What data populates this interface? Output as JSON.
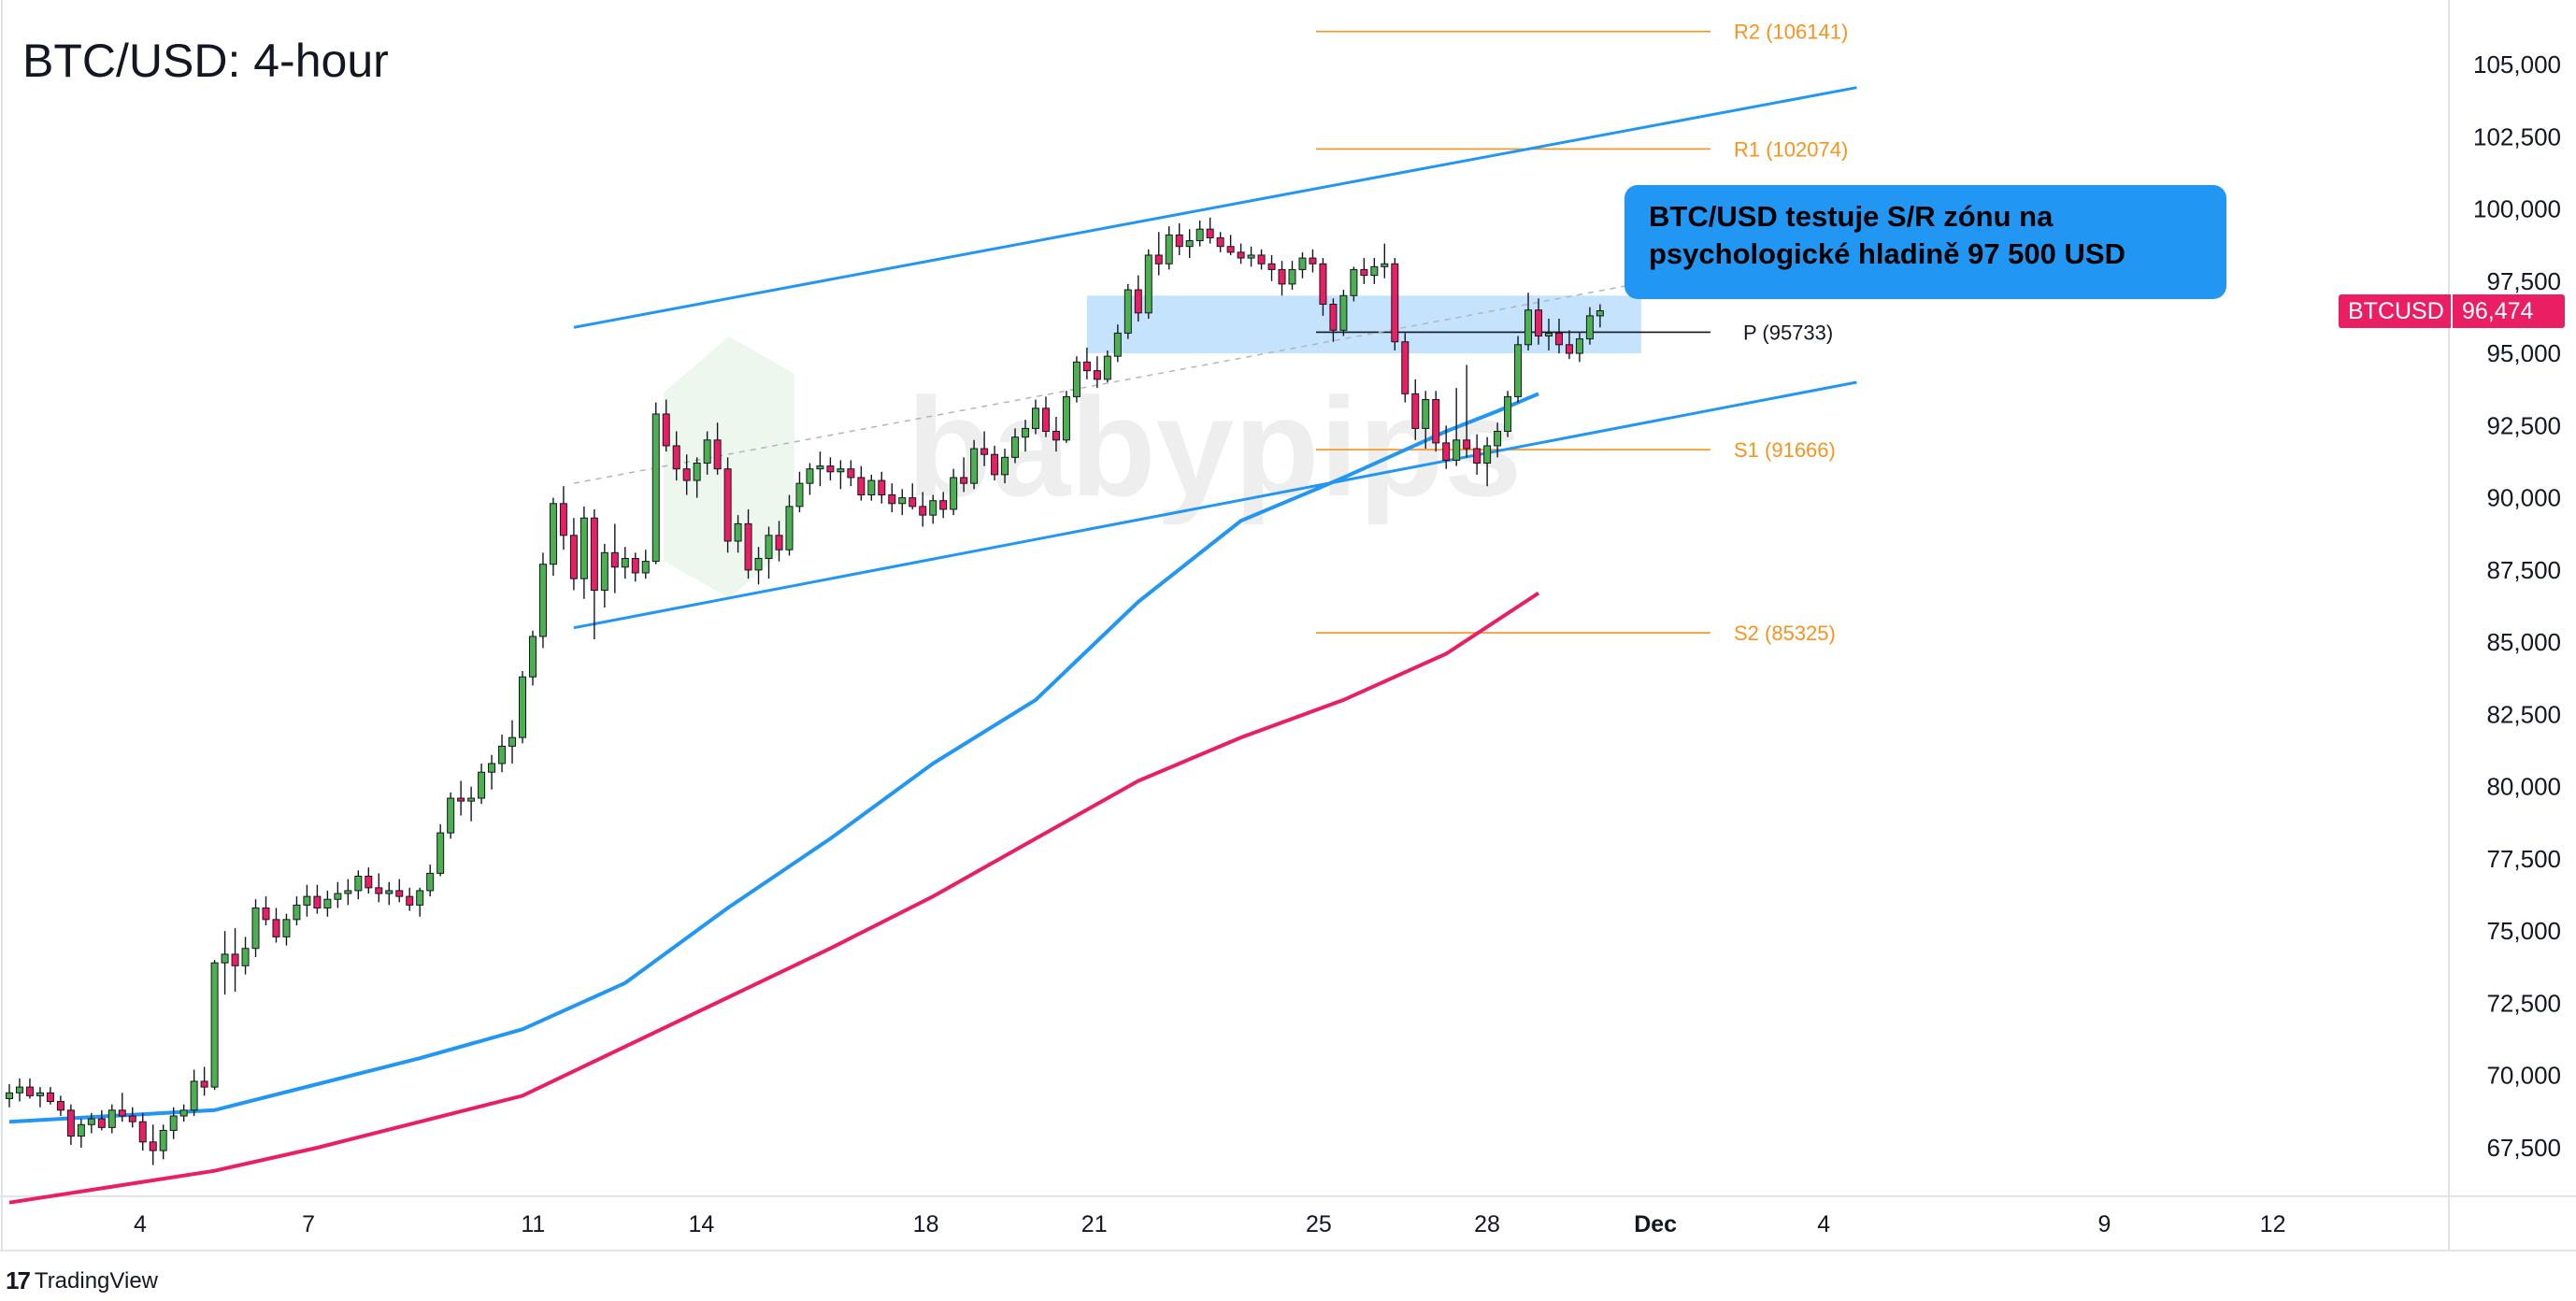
{
  "header": {
    "title": "BTC/USD: 4-hour"
  },
  "callout": {
    "text_line1": "BTC/USD testuje S/R zónu na",
    "text_line2": "psychologické hladině 97 500 USD"
  },
  "price_tag": {
    "symbol": "BTCUSD",
    "value": "96,474",
    "color": "#e91e63"
  },
  "footer": {
    "brand": "TradingView"
  },
  "watermark": {
    "text": "babypips"
  },
  "chart_data": {
    "type": "candlestick",
    "title": "BTC/USD: 4-hour",
    "ylim": [
      65500,
      106500
    ],
    "y_ticks": [
      67500,
      70000,
      72500,
      75000,
      77500,
      80000,
      82500,
      85000,
      87500,
      90000,
      92500,
      95000,
      97500,
      100000,
      102500,
      105000
    ],
    "y_tick_labels": [
      "67,500",
      "70,000",
      "72,500",
      "75,000",
      "77,500",
      "80,000",
      "82,500",
      "85,000",
      "87,500",
      "90,000",
      "92,500",
      "95,000",
      "97,500",
      "100,000",
      "102,500",
      "105,000"
    ],
    "x_ticks": [
      {
        "label": "4",
        "day": 4
      },
      {
        "label": "7",
        "day": 7
      },
      {
        "label": "11",
        "day": 11
      },
      {
        "label": "14",
        "day": 14
      },
      {
        "label": "18",
        "day": 18
      },
      {
        "label": "21",
        "day": 21
      },
      {
        "label": "25",
        "day": 25
      },
      {
        "label": "28",
        "day": 28
      },
      {
        "label": "Dec",
        "day": 31
      },
      {
        "label": "4",
        "day": 34
      },
      {
        "label": "9",
        "day": 39
      },
      {
        "label": "12",
        "day": 42
      }
    ],
    "x_range_days": [
      1.7,
      45.7
    ],
    "candles_ohlc": [
      [
        69200,
        69700,
        68900,
        69400
      ],
      [
        69400,
        69900,
        69100,
        69600
      ],
      [
        69600,
        69900,
        69200,
        69300
      ],
      [
        69300,
        69600,
        68900,
        69400
      ],
      [
        69400,
        69600,
        69000,
        69100
      ],
      [
        69100,
        69300,
        68600,
        68800
      ],
      [
        68800,
        69000,
        67600,
        67900
      ],
      [
        67900,
        68500,
        67500,
        68300
      ],
      [
        68300,
        68700,
        68000,
        68500
      ],
      [
        68500,
        68800,
        68100,
        68200
      ],
      [
        68200,
        69000,
        68000,
        68800
      ],
      [
        68800,
        69400,
        68400,
        68600
      ],
      [
        68600,
        68900,
        68200,
        68400
      ],
      [
        68400,
        68700,
        67400,
        67700
      ],
      [
        67700,
        68300,
        66900,
        67400
      ],
      [
        67400,
        68300,
        67100,
        68100
      ],
      [
        68100,
        68900,
        67800,
        68600
      ],
      [
        68600,
        69000,
        68400,
        68800
      ],
      [
        68800,
        70200,
        68600,
        69800
      ],
      [
        69800,
        70300,
        69300,
        69600
      ],
      [
        69600,
        74000,
        69500,
        73900
      ],
      [
        73900,
        75000,
        72800,
        74200
      ],
      [
        74200,
        75100,
        72900,
        73800
      ],
      [
        73800,
        74800,
        73500,
        74400
      ],
      [
        74400,
        76100,
        74100,
        75800
      ],
      [
        75800,
        76200,
        75200,
        75400
      ],
      [
        75400,
        75800,
        74600,
        74800
      ],
      [
        74800,
        75600,
        74500,
        75400
      ],
      [
        75400,
        76200,
        75200,
        75900
      ],
      [
        75900,
        76600,
        75500,
        76200
      ],
      [
        76200,
        76600,
        75600,
        75800
      ],
      [
        75800,
        76400,
        75500,
        76100
      ],
      [
        76100,
        76700,
        75800,
        76300
      ],
      [
        76300,
        76800,
        75900,
        76400
      ],
      [
        76400,
        77100,
        76100,
        76900
      ],
      [
        76900,
        77200,
        76300,
        76500
      ],
      [
        76500,
        77000,
        76000,
        76300
      ],
      [
        76300,
        76700,
        75900,
        76400
      ],
      [
        76400,
        76800,
        76000,
        76200
      ],
      [
        76200,
        76500,
        75700,
        75900
      ],
      [
        75900,
        76500,
        75500,
        76400
      ],
      [
        76400,
        77300,
        76200,
        77000
      ],
      [
        77000,
        78700,
        76900,
        78400
      ],
      [
        78400,
        79800,
        78200,
        79600
      ],
      [
        79600,
        80200,
        79000,
        79500
      ],
      [
        79500,
        80000,
        78800,
        79600
      ],
      [
        79600,
        80800,
        79400,
        80500
      ],
      [
        80500,
        81100,
        79900,
        80800
      ],
      [
        80800,
        81800,
        80500,
        81400
      ],
      [
        81400,
        82300,
        80800,
        81700
      ],
      [
        81700,
        84000,
        81500,
        83800
      ],
      [
        83800,
        85400,
        83500,
        85200
      ],
      [
        85200,
        88100,
        84800,
        87700
      ],
      [
        87700,
        90000,
        87300,
        89800
      ],
      [
        89800,
        90400,
        88200,
        88700
      ],
      [
        88700,
        89300,
        86800,
        87200
      ],
      [
        87200,
        89700,
        86500,
        89300
      ],
      [
        89300,
        89600,
        85100,
        86800
      ],
      [
        86800,
        88400,
        86200,
        88100
      ],
      [
        88100,
        89100,
        86700,
        87600
      ],
      [
        87600,
        88300,
        87200,
        87900
      ],
      [
        87900,
        88100,
        87100,
        87400
      ],
      [
        87400,
        88200,
        87200,
        87800
      ],
      [
        87800,
        93300,
        87700,
        92900
      ],
      [
        92900,
        93400,
        91600,
        91800
      ],
      [
        91800,
        92300,
        90600,
        91000
      ],
      [
        91000,
        91500,
        90100,
        90600
      ],
      [
        90600,
        91400,
        90000,
        91200
      ],
      [
        91200,
        92300,
        90800,
        92000
      ],
      [
        92000,
        92600,
        90800,
        91000
      ],
      [
        91000,
        91400,
        88100,
        88500
      ],
      [
        88500,
        89400,
        88100,
        89100
      ],
      [
        89100,
        89600,
        87200,
        87500
      ],
      [
        87500,
        88300,
        87000,
        87900
      ],
      [
        87900,
        89000,
        87200,
        88700
      ],
      [
        88700,
        89200,
        87800,
        88200
      ],
      [
        88200,
        90100,
        88000,
        89700
      ],
      [
        89700,
        90900,
        89500,
        90500
      ],
      [
        90500,
        91200,
        90100,
        91000
      ],
      [
        91000,
        91600,
        90400,
        91100
      ],
      [
        91100,
        91400,
        90600,
        90900
      ],
      [
        90900,
        91300,
        90300,
        91000
      ],
      [
        91000,
        91300,
        90400,
        90700
      ],
      [
        90700,
        91100,
        89900,
        90100
      ],
      [
        90100,
        90800,
        89900,
        90600
      ],
      [
        90600,
        90900,
        89800,
        90100
      ],
      [
        90100,
        90500,
        89500,
        89800
      ],
      [
        89800,
        90300,
        89400,
        90000
      ],
      [
        90000,
        90500,
        89600,
        89700
      ],
      [
        89700,
        90200,
        89000,
        89400
      ],
      [
        89400,
        90100,
        89100,
        89900
      ],
      [
        89900,
        90200,
        89300,
        89600
      ],
      [
        89600,
        91000,
        89400,
        90700
      ],
      [
        90700,
        91400,
        90200,
        90500
      ],
      [
        90500,
        92000,
        90300,
        91700
      ],
      [
        91700,
        92300,
        91100,
        91500
      ],
      [
        91500,
        91800,
        90600,
        90800
      ],
      [
        90800,
        91700,
        90500,
        91400
      ],
      [
        91400,
        92400,
        91200,
        92100
      ],
      [
        92100,
        92700,
        91600,
        92400
      ],
      [
        92400,
        93400,
        92200,
        93100
      ],
      [
        93100,
        93500,
        92100,
        92300
      ],
      [
        92300,
        92800,
        91600,
        92000
      ],
      [
        92000,
        93700,
        91900,
        93500
      ],
      [
        93500,
        94900,
        93300,
        94700
      ],
      [
        94700,
        95200,
        94100,
        94400
      ],
      [
        94400,
        94900,
        93800,
        94100
      ],
      [
        94100,
        95100,
        94000,
        94900
      ],
      [
        94900,
        96000,
        94700,
        95700
      ],
      [
        95700,
        97400,
        95500,
        97200
      ],
      [
        97200,
        97700,
        96100,
        96400
      ],
      [
        96400,
        98600,
        96200,
        98400
      ],
      [
        98400,
        99200,
        97700,
        98100
      ],
      [
        98100,
        99400,
        97900,
        99100
      ],
      [
        99100,
        99500,
        98400,
        98700
      ],
      [
        98700,
        99300,
        98300,
        98900
      ],
      [
        98900,
        99600,
        98700,
        99300
      ],
      [
        99300,
        99700,
        98800,
        99000
      ],
      [
        99000,
        99200,
        98500,
        98700
      ],
      [
        98700,
        99100,
        98400,
        98500
      ],
      [
        98500,
        98800,
        98100,
        98300
      ],
      [
        98300,
        98700,
        98000,
        98400
      ],
      [
        98400,
        98600,
        97900,
        98100
      ],
      [
        98100,
        98400,
        97500,
        97900
      ],
      [
        97900,
        98200,
        97000,
        97400
      ],
      [
        97400,
        98200,
        97200,
        97900
      ],
      [
        97900,
        98500,
        97600,
        98300
      ],
      [
        98300,
        98600,
        97800,
        98100
      ],
      [
        98100,
        98300,
        96300,
        96700
      ],
      [
        96700,
        96900,
        95400,
        95800
      ],
      [
        95800,
        97200,
        95600,
        97000
      ],
      [
        97000,
        98000,
        96800,
        97900
      ],
      [
        97900,
        98300,
        97400,
        97700
      ],
      [
        97700,
        98300,
        97400,
        98000
      ],
      [
        98000,
        98800,
        97600,
        98100
      ],
      [
        98100,
        98300,
        95100,
        95400
      ],
      [
        95400,
        95700,
        93300,
        93600
      ],
      [
        93600,
        94100,
        92000,
        92400
      ],
      [
        92400,
        93700,
        91700,
        93400
      ],
      [
        93400,
        93700,
        91600,
        91900
      ],
      [
        91900,
        92500,
        91000,
        91300
      ],
      [
        91300,
        93800,
        91100,
        92000
      ],
      [
        92000,
        94600,
        91400,
        91700
      ],
      [
        91700,
        92200,
        90800,
        91200
      ],
      [
        91200,
        92100,
        90400,
        91800
      ],
      [
        91800,
        92600,
        91400,
        92300
      ],
      [
        92300,
        93700,
        92100,
        93500
      ],
      [
        93500,
        95600,
        93300,
        95300
      ],
      [
        95300,
        97100,
        95100,
        96500
      ],
      [
        96500,
        96900,
        95300,
        95600
      ],
      [
        95600,
        96200,
        95100,
        95700
      ],
      [
        95700,
        96200,
        95000,
        95300
      ],
      [
        95300,
        95800,
        94800,
        95000
      ],
      [
        95000,
        95700,
        94700,
        95500
      ],
      [
        95500,
        96600,
        95300,
        96300
      ],
      [
        96300,
        96700,
        95900,
        96474
      ]
    ],
    "ema_blue": [
      [
        0,
        68400
      ],
      [
        20,
        68800
      ],
      [
        30,
        69700
      ],
      [
        40,
        70600
      ],
      [
        50,
        71600
      ],
      [
        60,
        73200
      ],
      [
        70,
        75800
      ],
      [
        80,
        78200
      ],
      [
        90,
        80800
      ],
      [
        100,
        83000
      ],
      [
        110,
        86400
      ],
      [
        120,
        89200
      ],
      [
        130,
        90700
      ],
      [
        140,
        92300
      ],
      [
        145,
        93000
      ],
      [
        149,
        93600
      ]
    ],
    "ema_magenta": [
      [
        0,
        65600
      ],
      [
        20,
        66700
      ],
      [
        30,
        67500
      ],
      [
        40,
        68400
      ],
      [
        50,
        69300
      ],
      [
        60,
        71000
      ],
      [
        70,
        72700
      ],
      [
        80,
        74400
      ],
      [
        90,
        76200
      ],
      [
        100,
        78200
      ],
      [
        110,
        80200
      ],
      [
        120,
        81700
      ],
      [
        130,
        83000
      ],
      [
        140,
        84600
      ],
      [
        149,
        86700
      ]
    ],
    "channel_upper": [
      [
        55,
        95900
      ],
      [
        180,
        104200
      ]
    ],
    "channel_lower": [
      [
        55,
        85500
      ],
      [
        180,
        94000
      ]
    ],
    "midline_dashed": [
      [
        55,
        90500
      ],
      [
        160,
        97500
      ]
    ],
    "sr_zone": {
      "price_low": 95000,
      "price_high": 97000,
      "x_start": 105,
      "x_end": 159
    },
    "pivot_levels": [
      {
        "label": "R2 (106141)",
        "price": 106141,
        "color": "#f7931e"
      },
      {
        "label": "R1 (102074)",
        "price": 102074,
        "color": "#f7931e"
      },
      {
        "label": "P (95733)",
        "price": 95733,
        "color": "#131722"
      },
      {
        "label": "S1 (91666)",
        "price": 91666,
        "color": "#f7931e"
      },
      {
        "label": "S2 (85325)",
        "price": 85325,
        "color": "#f7931e"
      }
    ],
    "colors": {
      "bull": "#4caf50",
      "bear": "#e91e63",
      "ema_blue": "#2196f3",
      "ema_magenta": "#e91e63",
      "channel": "#2196f3",
      "zone": "#bbdefb"
    }
  }
}
